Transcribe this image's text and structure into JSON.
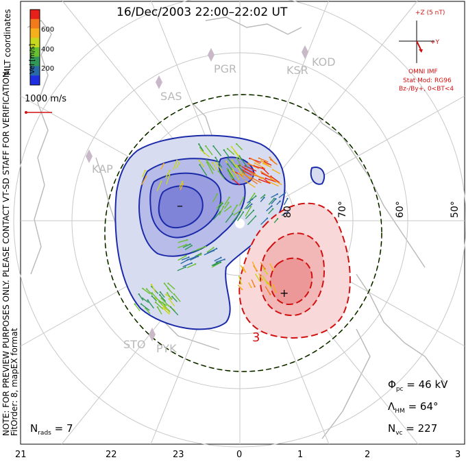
{
  "title": "16/Dec/2003 22:00–22:02 UT",
  "colorbar": {
    "label": "Vel [m/s]",
    "ticks": [
      "600",
      "400",
      "200"
    ],
    "colors": [
      "#e8201a",
      "#f07a1c",
      "#f5b01c",
      "#c8d81c",
      "#68c030",
      "#309858",
      "#2a6aa8",
      "#1e2ee0"
    ]
  },
  "coord_label": "MLT coordinates",
  "ref_vector": "1000 m/s",
  "note_text": "NOTE: FOR PREVIEW PURPOSES ONLY. PLEASE CONTACT VT-SD STAFF FOR VERIFICATION.",
  "fit_text": "FitOrder: 8, mapEX format",
  "imf": {
    "z_label": "+Z (5 nT)",
    "y_label": "+Y",
    "model_title": "OMNI IMF",
    "model_line1": "Stat Mod: RG96",
    "model_line2": "Bz-/By+, 0<BT<4"
  },
  "stations": [
    "PGR",
    "KSR",
    "KOD",
    "SAS",
    "KAP",
    "STO",
    "PYK"
  ],
  "lat_labels": [
    "80",
    "70°",
    "60°",
    "50°"
  ],
  "potential_markers": {
    "min": "–",
    "max": "+"
  },
  "contour_label": "3",
  "stats": {
    "phi_sym": "Φ",
    "phi_sub": "pc",
    "phi_val": "= 46 kV",
    "lam_sym": "Λ",
    "lam_sub": "HM",
    "lam_val": "= 64°",
    "nvc_sym": "N",
    "nvc_sub": "vc",
    "nvc_val": "= 227",
    "nrads_sym": "N",
    "nrads_sub": "rads",
    "nrads_val": "= 7"
  },
  "mlt_ticks": [
    "21",
    "22",
    "23",
    "0",
    "1",
    "2",
    "3"
  ]
}
